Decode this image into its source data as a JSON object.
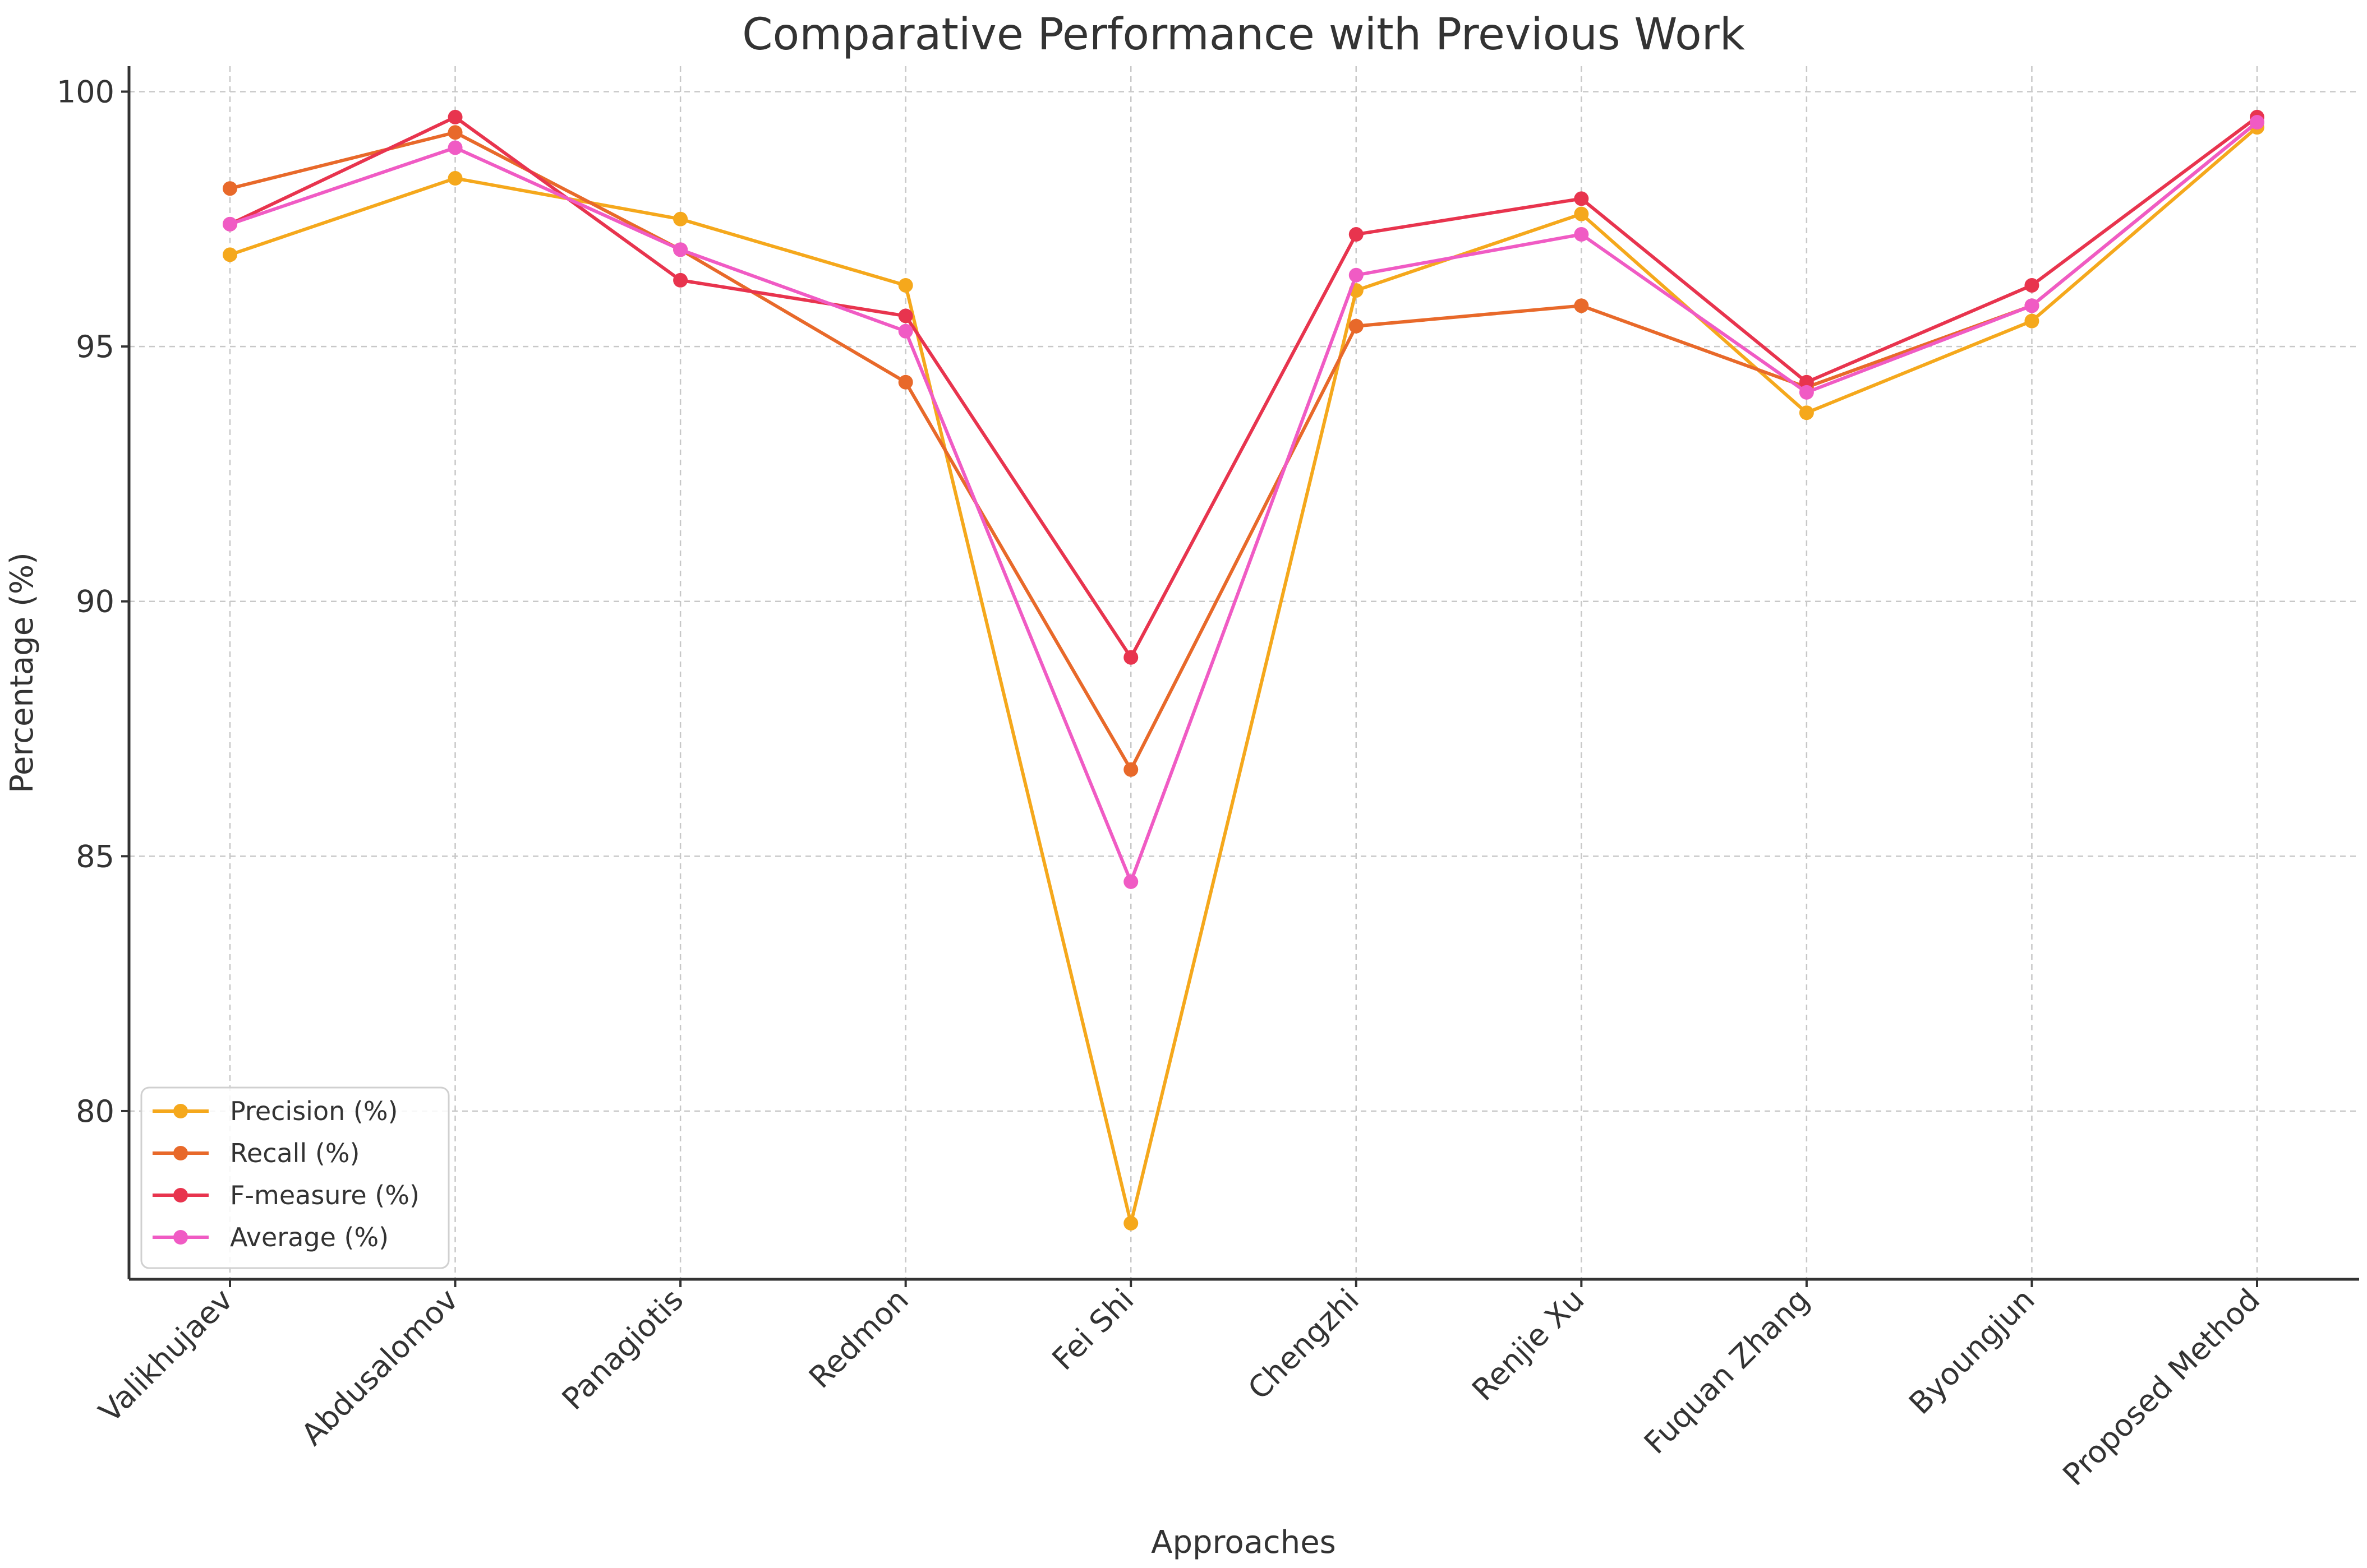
{
  "chart_data": {
    "type": "line",
    "title": "Comparative Performance with Previous Work",
    "xlabel": "Approaches",
    "ylabel": "Percentage (%)",
    "ylim": [
      76.7,
      100.5
    ],
    "yticks": [
      80,
      85,
      90,
      95,
      100
    ],
    "grid": true,
    "legend_position": "lower-left",
    "categories": [
      "Valikhujaev",
      "Abdusalomov",
      "Panagiotis",
      "Redmon",
      "Fei Shi",
      "Chengzhi",
      "Renjie Xu",
      "Fuquan Zhang",
      "Byoungjun",
      "Proposed Method"
    ],
    "series": [
      {
        "name": "Precision (%)",
        "color": "#F5A81C",
        "values": [
          96.8,
          98.3,
          97.5,
          96.2,
          77.8,
          96.1,
          97.6,
          93.7,
          95.5,
          99.3
        ]
      },
      {
        "name": "Recall (%)",
        "color": "#E8692A",
        "values": [
          98.1,
          99.2,
          96.9,
          94.3,
          86.7,
          95.4,
          95.8,
          94.2,
          95.8,
          99.4
        ]
      },
      {
        "name": "F-measure (%)",
        "color": "#E8344E",
        "values": [
          97.4,
          99.5,
          96.3,
          95.6,
          88.9,
          97.2,
          97.9,
          94.3,
          96.2,
          99.5
        ]
      },
      {
        "name": "Average (%)",
        "color": "#F05BC4",
        "values": [
          97.4,
          98.9,
          96.9,
          95.3,
          84.5,
          96.4,
          97.2,
          94.1,
          95.8,
          99.4
        ]
      }
    ]
  }
}
